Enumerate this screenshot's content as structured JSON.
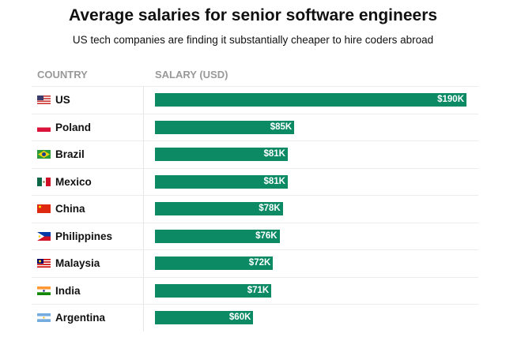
{
  "title": "Average salaries for senior software engineers",
  "subtitle": "US tech companies are finding it substantially cheaper to hire coders abroad",
  "chart_data": {
    "type": "bar",
    "title": "Average salaries for senior software engineers",
    "subtitle": "US tech companies are finding it substantially cheaper to hire coders abroad",
    "column_headers": [
      "COUNTRY",
      "SALARY (USD)"
    ],
    "categories": [
      "US",
      "Poland",
      "Brazil",
      "Mexico",
      "China",
      "Philippines",
      "Malaysia",
      "India",
      "Argentina"
    ],
    "values": [
      190,
      85,
      81,
      81,
      78,
      76,
      72,
      71,
      60
    ],
    "labels": [
      "$190K",
      "$85K",
      "$81K",
      "$81K",
      "$78K",
      "$76K",
      "$72K",
      "$71K",
      "$60K"
    ],
    "units": "thousand USD",
    "xlim": [
      0,
      190
    ],
    "bar_color": "#0b8a64"
  }
}
